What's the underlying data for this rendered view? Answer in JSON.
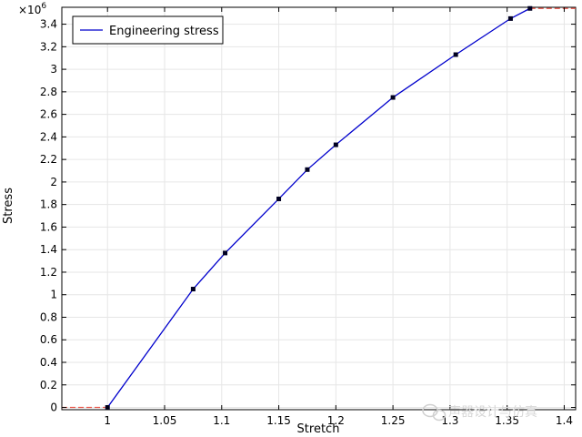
{
  "chart_data": {
    "type": "line",
    "xlabel": "Stretch",
    "ylabel": "Stress",
    "y_multiplier_label": "×10",
    "y_multiplier_exponent": "6",
    "xlim": [
      0.96,
      1.41
    ],
    "ylim": [
      -0.02,
      3.55
    ],
    "x_ticks": [
      1,
      1.05,
      1.1,
      1.15,
      1.2,
      1.25,
      1.3,
      1.35,
      1.4
    ],
    "x_tick_labels": [
      "1",
      "1.05",
      "1.1",
      "1.15",
      "1.2",
      "1.25",
      "1.3",
      "1.35",
      "1.4"
    ],
    "y_ticks": [
      0,
      0.2,
      0.4,
      0.6,
      0.8,
      1,
      1.2,
      1.4,
      1.6,
      1.8,
      2,
      2.2,
      2.4,
      2.6,
      2.8,
      3,
      3.2,
      3.4
    ],
    "y_tick_labels": [
      "0",
      "0.2",
      "0.4",
      "0.6",
      "0.8",
      "1",
      "1.2",
      "1.4",
      "1.6",
      "1.8",
      "2",
      "2.2",
      "2.4",
      "2.6",
      "2.8",
      "3",
      "3.2",
      "3.4"
    ],
    "grid": true,
    "legend_position": "top-left",
    "series": [
      {
        "name": "Engineering stress",
        "color": "#0000cc",
        "x": [
          1.0,
          1.075,
          1.103,
          1.15,
          1.175,
          1.2,
          1.25,
          1.305,
          1.353,
          1.37
        ],
        "y": [
          0.0,
          1.05,
          1.37,
          1.85,
          2.11,
          2.33,
          2.75,
          3.13,
          3.45,
          3.54
        ]
      }
    ],
    "extrapolation": {
      "color": "#e8564a",
      "left_x": [
        0.96,
        1.0
      ],
      "left_y": [
        0.0,
        0.0
      ],
      "right_x": [
        1.37,
        1.41
      ],
      "right_y": [
        3.54,
        3.54
      ]
    }
  },
  "watermark": {
    "text": "声器设计与仿真",
    "icon": "wechat-icon"
  }
}
